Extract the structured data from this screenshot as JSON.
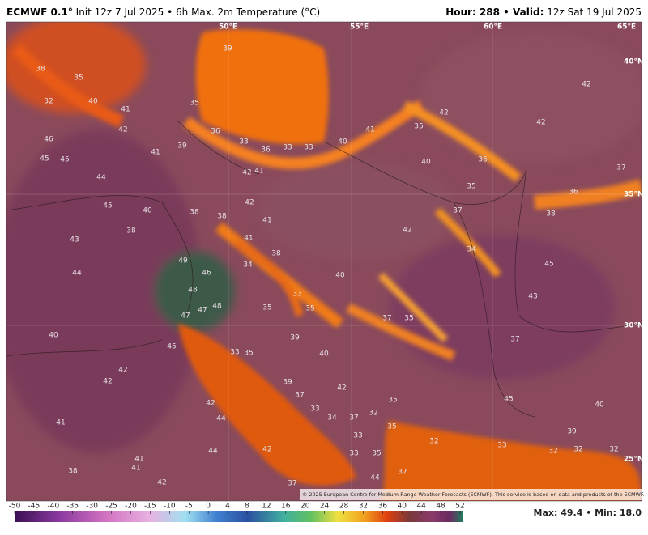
{
  "header": {
    "model": "ECMWF 0.1°",
    "title": "Init 12z 7 Jul 2025 • 6h Max. 2m Temperature (°C)",
    "valid_label": "Hour: 288 • Valid:",
    "valid": "12z Sat 19 Jul 2025"
  },
  "map": {
    "grid_labels": [
      "50°E",
      "55°E",
      "60°E",
      "65°E",
      "40°N",
      "35°N",
      "30°N",
      "25°N"
    ],
    "labels": [
      38,
      35,
      32,
      40,
      41,
      42,
      46,
      45,
      45,
      44,
      45,
      43,
      44,
      40,
      42,
      42,
      41,
      38,
      41,
      42,
      44,
      44,
      42,
      47,
      45,
      47,
      48,
      48,
      49,
      46,
      38,
      40,
      38,
      38,
      41,
      38,
      34,
      35,
      33,
      35,
      39,
      40,
      42,
      33,
      34,
      37,
      33,
      35,
      35,
      32,
      37,
      37,
      35,
      34,
      37,
      42,
      35,
      36,
      40,
      35,
      41,
      42,
      42,
      42,
      37,
      36,
      38,
      45,
      43,
      37,
      45,
      40,
      39,
      32,
      32,
      32,
      33,
      40,
      33,
      33,
      36,
      33,
      36,
      39,
      41,
      35,
      39,
      41,
      42,
      42,
      41,
      40,
      33,
      35,
      39,
      37,
      32,
      33,
      35,
      44,
      42,
      37,
      41
    ],
    "credit": "© 2025 European Centre for Medium-Range Weather Forecasts (ECMWF). This service is based on data and products of the ECMWF."
  },
  "colorbar": {
    "ticks": [
      -50,
      -45,
      -40,
      -35,
      -30,
      -25,
      -20,
      -15,
      -10,
      -5,
      0,
      4,
      8,
      12,
      16,
      20,
      24,
      28,
      32,
      36,
      40,
      44,
      48,
      52
    ]
  },
  "footer": {
    "stats": "Max: 49.4 • Min: 18.0"
  }
}
